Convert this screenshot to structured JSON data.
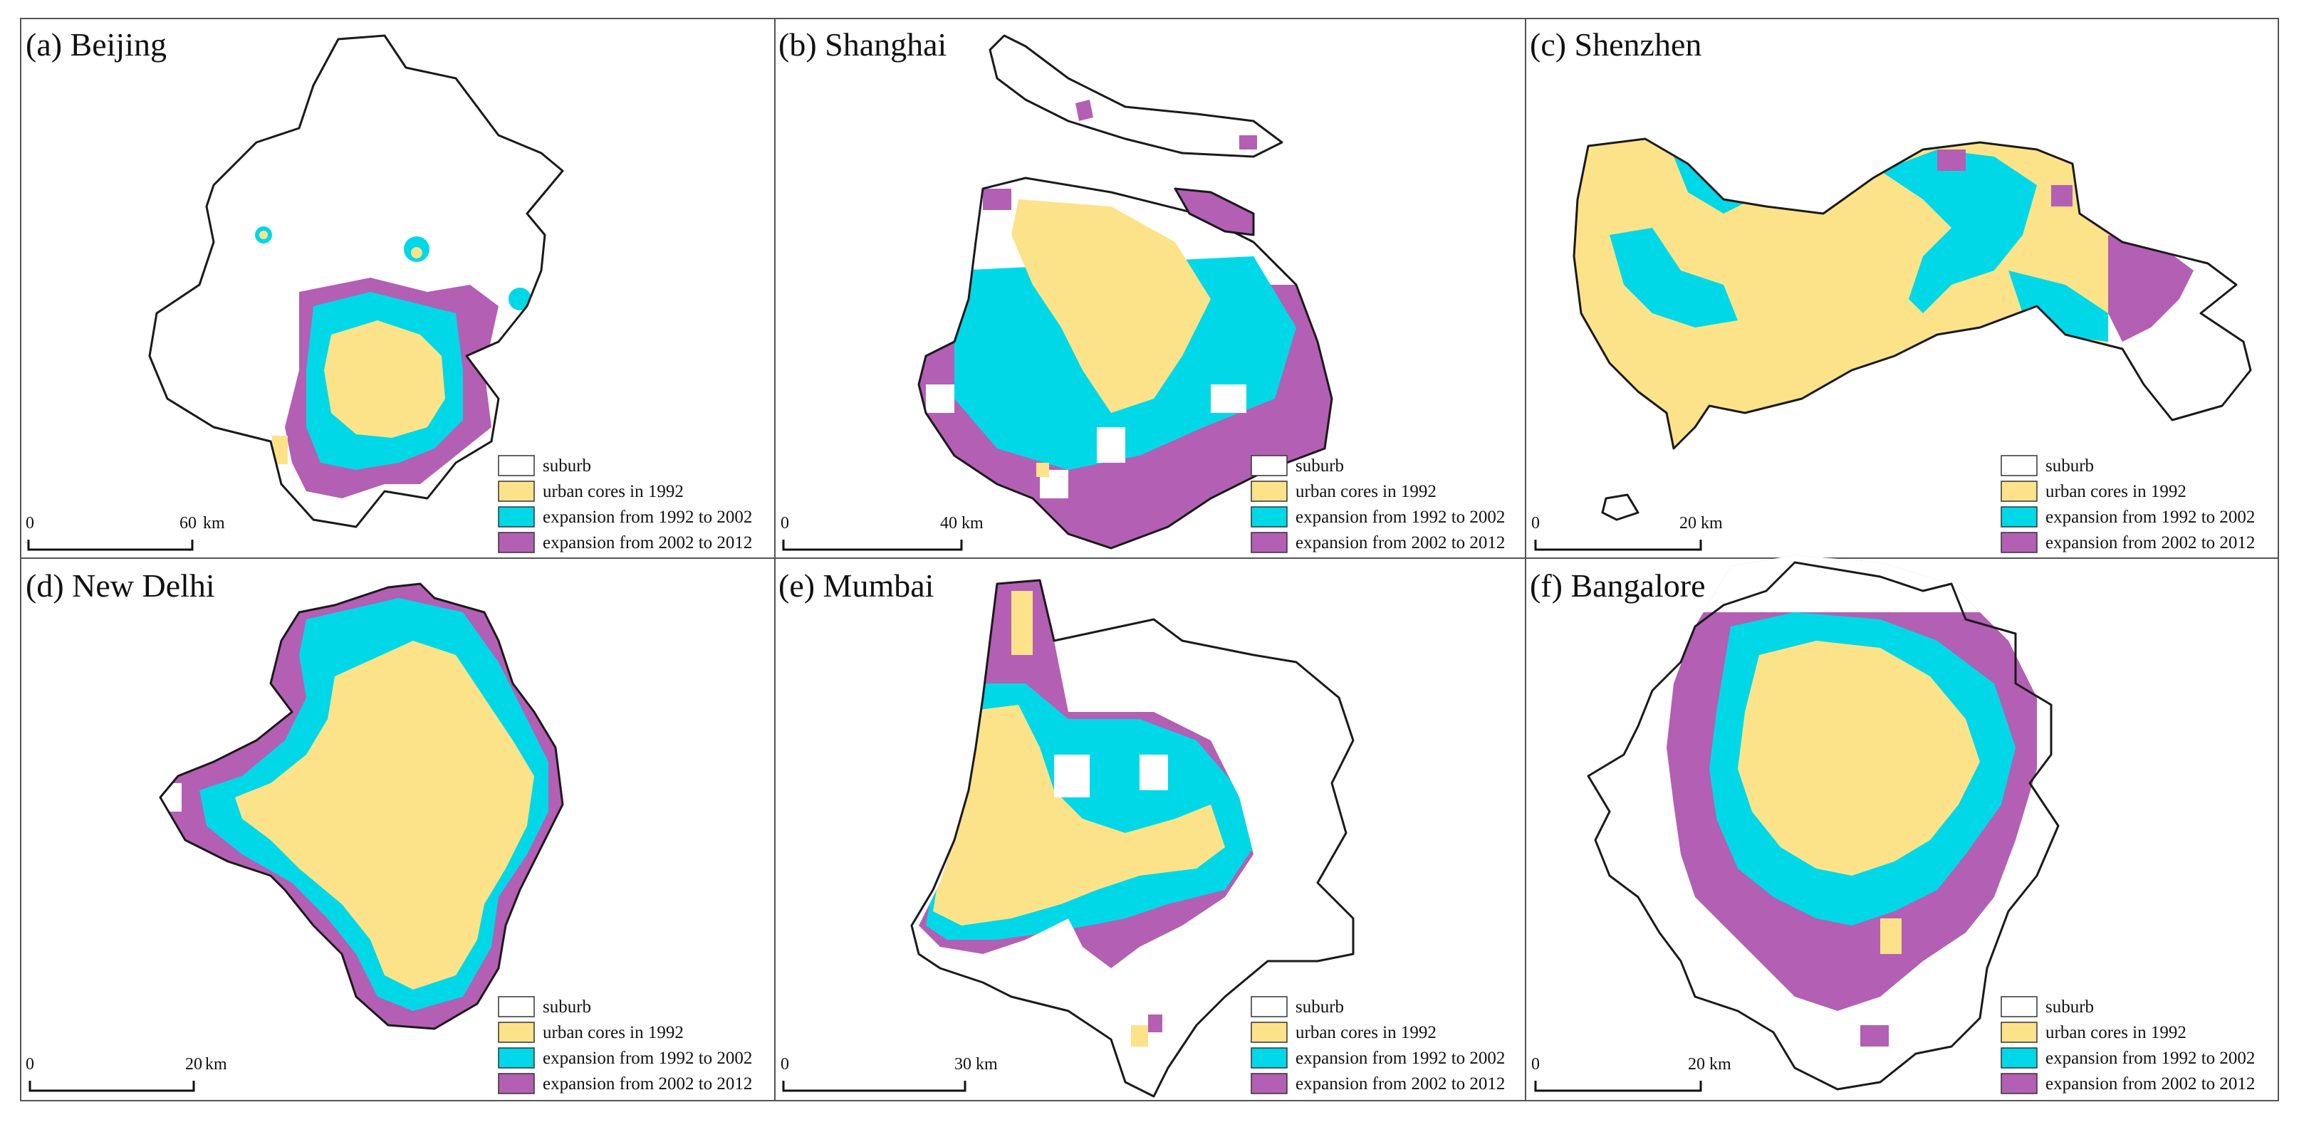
{
  "colors": {
    "suburb": "#ffffff",
    "urban_1992": "#fce38a",
    "exp_1992_2002": "#00d8e8",
    "exp_2002_2012": "#b35fb3",
    "outline": "#1a1a1a"
  },
  "legend": [
    {
      "key": "suburb",
      "label": "suburb"
    },
    {
      "key": "urban_1992",
      "label": "urban cores in 1992"
    },
    {
      "key": "exp_1992_2002",
      "label": "expansion from 1992 to 2002"
    },
    {
      "key": "exp_2002_2012",
      "label": "expansion from 2002 to 2012"
    }
  ],
  "panels": [
    {
      "id": "beijing",
      "title": "(a) Beijing",
      "scale_zero": "0",
      "scale_value": "60",
      "scale_unit": "km",
      "shape_icon": "beijing-map-icon"
    },
    {
      "id": "shanghai",
      "title": "(b) Shanghai",
      "scale_zero": "0",
      "scale_value": "40",
      "scale_unit": "km",
      "shape_icon": "shanghai-map-icon"
    },
    {
      "id": "shenzhen",
      "title": "(c) Shenzhen",
      "scale_zero": "0",
      "scale_value": "20",
      "scale_unit": "km",
      "shape_icon": "shenzhen-map-icon"
    },
    {
      "id": "newdelhi",
      "title": "(d) New Delhi",
      "scale_zero": "0",
      "scale_value": "20",
      "scale_unit": "km",
      "shape_icon": "newdelhi-map-icon"
    },
    {
      "id": "mumbai",
      "title": "(e) Mumbai",
      "scale_zero": "0",
      "scale_value": "30",
      "scale_unit": "km",
      "shape_icon": "mumbai-map-icon"
    },
    {
      "id": "bangalore",
      "title": "(f) Bangalore",
      "scale_zero": "0",
      "scale_value": "20",
      "scale_unit": "km",
      "shape_icon": "bangalore-map-icon"
    }
  ]
}
